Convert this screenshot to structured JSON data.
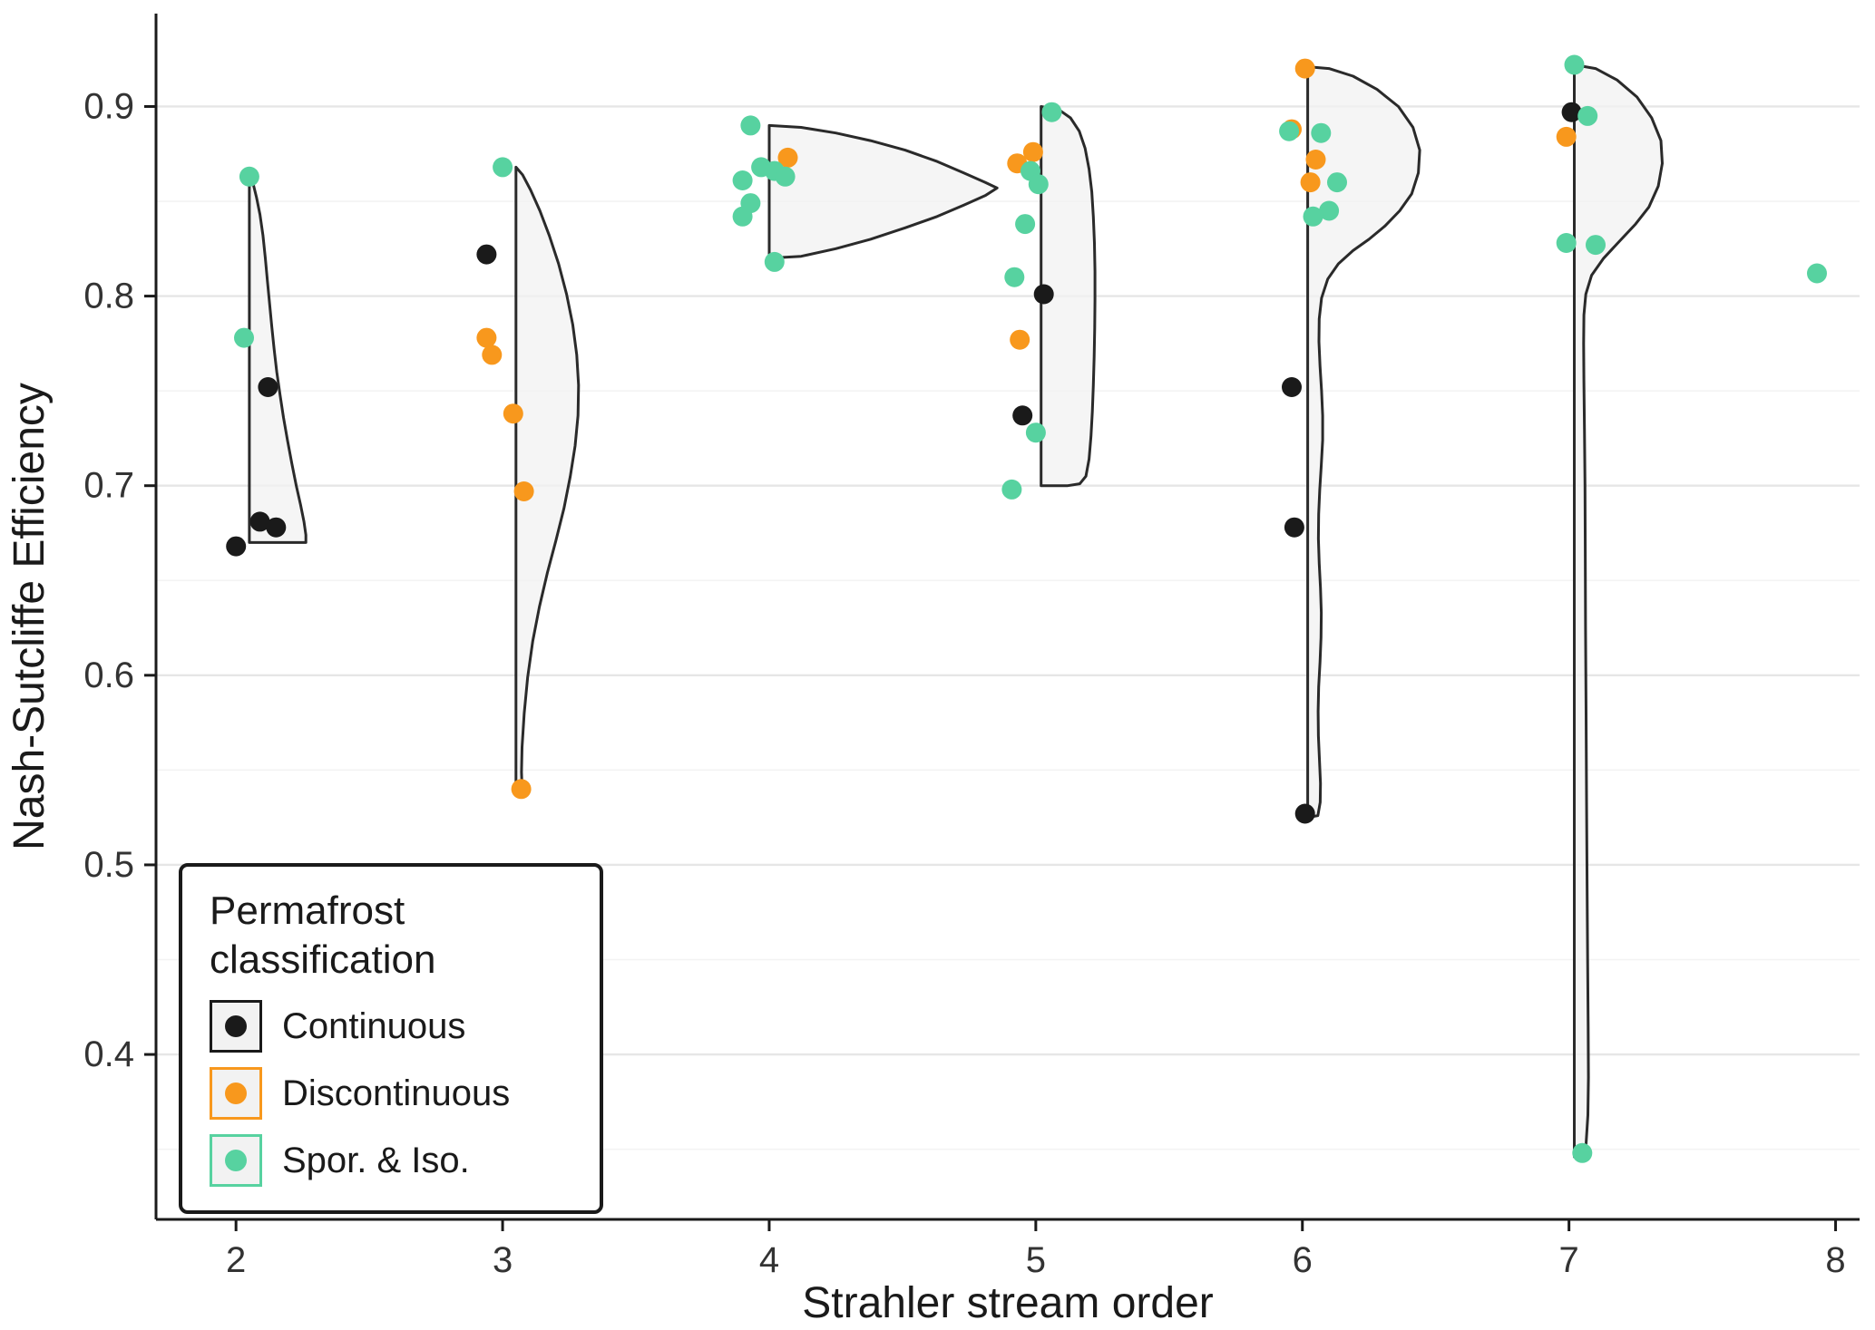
{
  "chart_data": {
    "type": "scatter",
    "title": "",
    "xlabel": "Strahler stream order",
    "ylabel": "Nash-Sutcliffe Efficiency",
    "xlim": [
      1.7,
      8.09
    ],
    "ylim": [
      0.313,
      0.949
    ],
    "x_ticks": [
      2,
      3,
      4,
      5,
      6,
      7,
      8
    ],
    "x_tick_labels": [
      "2",
      "3",
      "4",
      "5",
      "6",
      "7",
      "8"
    ],
    "y_ticks": [
      0.4,
      0.5,
      0.6,
      0.7,
      0.8,
      0.9
    ],
    "y_tick_labels": [
      "0.4",
      "0.5",
      "0.6",
      "0.7",
      "0.8",
      "0.9"
    ],
    "y_minor_ticks": [
      0.35,
      0.45,
      0.55,
      0.65,
      0.75,
      0.85
    ],
    "grid": {
      "major_color": "#e6e6e6",
      "minor_color": "#f3f3f3",
      "on": true
    },
    "axis_color": "#1a1a1a",
    "tick_label_color": "#333333",
    "point_radius": 11,
    "violin_style": {
      "fill": "#f2f2f2",
      "opacity": 0.75,
      "stroke": "#2a2a2a",
      "stroke_width": 3
    },
    "violins": [
      {
        "order": 2,
        "outline": [
          [
            2.05,
            0.865
          ],
          [
            2.063,
            0.86
          ],
          [
            2.077,
            0.852
          ],
          [
            2.09,
            0.843
          ],
          [
            2.101,
            0.832
          ],
          [
            2.11,
            0.82
          ],
          [
            2.118,
            0.808
          ],
          [
            2.126,
            0.796
          ],
          [
            2.134,
            0.784
          ],
          [
            2.143,
            0.772
          ],
          [
            2.153,
            0.76
          ],
          [
            2.165,
            0.748
          ],
          [
            2.178,
            0.736
          ],
          [
            2.193,
            0.724
          ],
          [
            2.209,
            0.712
          ],
          [
            2.226,
            0.7
          ],
          [
            2.242,
            0.69
          ],
          [
            2.255,
            0.681
          ],
          [
            2.262,
            0.674
          ],
          [
            2.262,
            0.67
          ],
          [
            2.05,
            0.67
          ]
        ]
      },
      {
        "order": 3,
        "outline": [
          [
            3.05,
            0.868
          ],
          [
            3.075,
            0.864
          ],
          [
            3.105,
            0.856
          ],
          [
            3.14,
            0.845
          ],
          [
            3.175,
            0.832
          ],
          [
            3.21,
            0.817
          ],
          [
            3.24,
            0.801
          ],
          [
            3.263,
            0.785
          ],
          [
            3.278,
            0.769
          ],
          [
            3.285,
            0.753
          ],
          [
            3.283,
            0.737
          ],
          [
            3.272,
            0.721
          ],
          [
            3.254,
            0.705
          ],
          [
            3.23,
            0.688
          ],
          [
            3.2,
            0.671
          ],
          [
            3.168,
            0.654
          ],
          [
            3.138,
            0.636
          ],
          [
            3.113,
            0.618
          ],
          [
            3.094,
            0.599
          ],
          [
            3.081,
            0.58
          ],
          [
            3.073,
            0.562
          ],
          [
            3.071,
            0.549
          ],
          [
            3.073,
            0.541
          ],
          [
            3.071,
            0.537
          ],
          [
            3.05,
            0.537
          ]
        ]
      },
      {
        "order": 4,
        "outline": [
          [
            4.0,
            0.89
          ],
          [
            4.12,
            0.889
          ],
          [
            4.25,
            0.886
          ],
          [
            4.38,
            0.882
          ],
          [
            4.51,
            0.877
          ],
          [
            4.63,
            0.871
          ],
          [
            4.73,
            0.865
          ],
          [
            4.81,
            0.86
          ],
          [
            4.855,
            0.857
          ],
          [
            4.81,
            0.853
          ],
          [
            4.73,
            0.848
          ],
          [
            4.63,
            0.842
          ],
          [
            4.51,
            0.836
          ],
          [
            4.38,
            0.83
          ],
          [
            4.25,
            0.825
          ],
          [
            4.12,
            0.821
          ],
          [
            4.0,
            0.82
          ]
        ]
      },
      {
        "order": 5,
        "outline": [
          [
            5.02,
            0.9
          ],
          [
            5.09,
            0.898
          ],
          [
            5.13,
            0.894
          ],
          [
            5.163,
            0.887
          ],
          [
            5.185,
            0.878
          ],
          [
            5.2,
            0.867
          ],
          [
            5.21,
            0.855
          ],
          [
            5.216,
            0.842
          ],
          [
            5.22,
            0.828
          ],
          [
            5.222,
            0.813
          ],
          [
            5.222,
            0.798
          ],
          [
            5.221,
            0.783
          ],
          [
            5.219,
            0.768
          ],
          [
            5.216,
            0.753
          ],
          [
            5.212,
            0.739
          ],
          [
            5.207,
            0.726
          ],
          [
            5.2,
            0.714
          ],
          [
            5.188,
            0.705
          ],
          [
            5.165,
            0.701
          ],
          [
            5.12,
            0.7
          ],
          [
            5.02,
            0.7
          ]
        ]
      },
      {
        "order": 6,
        "outline": [
          [
            6.02,
            0.921
          ],
          [
            6.1,
            0.92
          ],
          [
            6.19,
            0.916
          ],
          [
            6.28,
            0.909
          ],
          [
            6.36,
            0.9
          ],
          [
            6.415,
            0.889
          ],
          [
            6.44,
            0.877
          ],
          [
            6.435,
            0.865
          ],
          [
            6.41,
            0.854
          ],
          [
            6.365,
            0.845
          ],
          [
            6.31,
            0.837
          ],
          [
            6.25,
            0.83
          ],
          [
            6.19,
            0.824
          ],
          [
            6.135,
            0.817
          ],
          [
            6.095,
            0.809
          ],
          [
            6.072,
            0.799
          ],
          [
            6.063,
            0.788
          ],
          [
            6.062,
            0.776
          ],
          [
            6.066,
            0.763
          ],
          [
            6.072,
            0.75
          ],
          [
            6.076,
            0.737
          ],
          [
            6.076,
            0.724
          ],
          [
            6.071,
            0.711
          ],
          [
            6.065,
            0.698
          ],
          [
            6.061,
            0.685
          ],
          [
            6.06,
            0.672
          ],
          [
            6.063,
            0.659
          ],
          [
            6.068,
            0.646
          ],
          [
            6.071,
            0.633
          ],
          [
            6.07,
            0.62
          ],
          [
            6.066,
            0.607
          ],
          [
            6.061,
            0.594
          ],
          [
            6.059,
            0.581
          ],
          [
            6.06,
            0.568
          ],
          [
            6.064,
            0.555
          ],
          [
            6.068,
            0.543
          ],
          [
            6.067,
            0.533
          ],
          [
            6.058,
            0.526
          ],
          [
            6.02,
            0.525
          ]
        ]
      },
      {
        "order": 7,
        "outline": [
          [
            7.02,
            0.922
          ],
          [
            7.1,
            0.92
          ],
          [
            7.18,
            0.914
          ],
          [
            7.255,
            0.905
          ],
          [
            7.31,
            0.894
          ],
          [
            7.345,
            0.882
          ],
          [
            7.35,
            0.87
          ],
          [
            7.335,
            0.858
          ],
          [
            7.3,
            0.847
          ],
          [
            7.25,
            0.838
          ],
          [
            7.19,
            0.829
          ],
          [
            7.13,
            0.82
          ],
          [
            7.085,
            0.811
          ],
          [
            7.063,
            0.801
          ],
          [
            7.056,
            0.79
          ],
          [
            7.055,
            0.775
          ],
          [
            7.056,
            0.755
          ],
          [
            7.058,
            0.73
          ],
          [
            7.06,
            0.7
          ],
          [
            7.061,
            0.665
          ],
          [
            7.062,
            0.625
          ],
          [
            7.064,
            0.58
          ],
          [
            7.066,
            0.535
          ],
          [
            7.068,
            0.49
          ],
          [
            7.07,
            0.45
          ],
          [
            7.072,
            0.415
          ],
          [
            7.073,
            0.388
          ],
          [
            7.071,
            0.368
          ],
          [
            7.064,
            0.353
          ],
          [
            7.052,
            0.347
          ],
          [
            7.02,
            0.346
          ]
        ]
      }
    ],
    "series": [
      {
        "name": "Continuous",
        "color": "#1a1a1a",
        "points": [
          [
            2.12,
            0.752
          ],
          [
            2.09,
            0.681
          ],
          [
            2.15,
            0.678
          ],
          [
            2.0,
            0.668
          ],
          [
            2.94,
            0.822
          ],
          [
            5.03,
            0.801
          ],
          [
            4.95,
            0.737
          ],
          [
            5.96,
            0.752
          ],
          [
            5.97,
            0.678
          ],
          [
            6.01,
            0.527
          ],
          [
            7.01,
            0.897
          ]
        ]
      },
      {
        "name": "Discontinuous",
        "color": "#F8981D",
        "points": [
          [
            2.94,
            0.778
          ],
          [
            2.96,
            0.769
          ],
          [
            3.04,
            0.738
          ],
          [
            3.08,
            0.697
          ],
          [
            3.07,
            0.54
          ],
          [
            4.07,
            0.873
          ],
          [
            4.99,
            0.876
          ],
          [
            4.93,
            0.87
          ],
          [
            4.94,
            0.777
          ],
          [
            6.01,
            0.92
          ],
          [
            5.96,
            0.888
          ],
          [
            6.05,
            0.872
          ],
          [
            6.03,
            0.86
          ],
          [
            6.99,
            0.884
          ]
        ]
      },
      {
        "name": "Spor. & Iso.",
        "color": "#57D2A0",
        "points": [
          [
            2.05,
            0.863
          ],
          [
            2.03,
            0.778
          ],
          [
            3.0,
            0.868
          ],
          [
            3.93,
            0.89
          ],
          [
            3.97,
            0.868
          ],
          [
            3.9,
            0.861
          ],
          [
            4.02,
            0.866
          ],
          [
            4.06,
            0.863
          ],
          [
            3.93,
            0.849
          ],
          [
            3.9,
            0.842
          ],
          [
            4.02,
            0.818
          ],
          [
            5.06,
            0.897
          ],
          [
            4.98,
            0.866
          ],
          [
            5.01,
            0.859
          ],
          [
            4.96,
            0.838
          ],
          [
            4.92,
            0.81
          ],
          [
            5.0,
            0.728
          ],
          [
            4.91,
            0.698
          ],
          [
            5.95,
            0.887
          ],
          [
            6.07,
            0.886
          ],
          [
            6.13,
            0.86
          ],
          [
            6.1,
            0.845
          ],
          [
            6.04,
            0.842
          ],
          [
            7.02,
            0.922
          ],
          [
            7.07,
            0.895
          ],
          [
            6.99,
            0.828
          ],
          [
            7.1,
            0.827
          ],
          [
            7.05,
            0.348
          ],
          [
            7.93,
            0.812
          ]
        ]
      }
    ],
    "legend": {
      "title_lines": [
        "Permafrost",
        "classification"
      ],
      "key_fill": "#f2f2f2",
      "entries": [
        {
          "label": "Continuous",
          "color": "#1a1a1a"
        },
        {
          "label": "Discontinuous",
          "color": "#F8981D"
        },
        {
          "label": "Spor. & Iso.",
          "color": "#57D2A0"
        }
      ]
    }
  }
}
